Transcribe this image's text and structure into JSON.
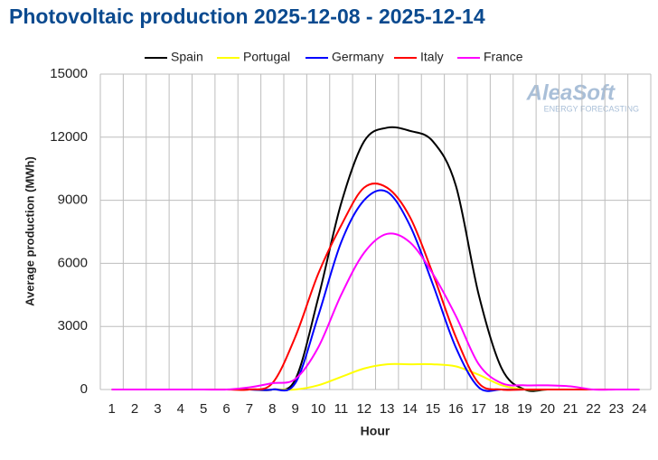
{
  "chart_data": {
    "type": "line",
    "title": "Photovoltaic production 2025-12-08 - 2025-12-14",
    "x_label": "Hour",
    "y_label": "Average production (MWh)",
    "watermark": {
      "name": "AleaSoft",
      "tagline": "ENERGY FORECASTING"
    },
    "categories": [
      1,
      2,
      3,
      4,
      5,
      6,
      7,
      8,
      9,
      10,
      11,
      12,
      13,
      14,
      15,
      16,
      17,
      18,
      19,
      20,
      21,
      22,
      23,
      24
    ],
    "ylim": [
      0,
      15000
    ],
    "yticks": [
      0,
      3000,
      6000,
      9000,
      12000,
      15000
    ],
    "grid": true,
    "legend": "top",
    "series": [
      {
        "name": "Spain",
        "color": "#000000",
        "values": [
          0,
          0,
          0,
          0,
          0,
          0,
          0,
          0,
          470,
          4350,
          8850,
          11800,
          12450,
          12300,
          11800,
          9700,
          4500,
          1000,
          0,
          0,
          0,
          0,
          0,
          0
        ]
      },
      {
        "name": "Portugal",
        "color": "#ffff00",
        "values": [
          0,
          0,
          0,
          0,
          0,
          0,
          0,
          0,
          0,
          200,
          600,
          1000,
          1200,
          1200,
          1200,
          1100,
          700,
          200,
          0,
          0,
          0,
          0,
          0,
          0
        ]
      },
      {
        "name": "Germany",
        "color": "#0000ff",
        "values": [
          0,
          0,
          0,
          0,
          0,
          0,
          0,
          0,
          300,
          3500,
          7000,
          9000,
          9400,
          7800,
          5000,
          2000,
          100,
          0,
          0,
          0,
          0,
          0,
          0,
          0
        ]
      },
      {
        "name": "Italy",
        "color": "#ff0000",
        "values": [
          0,
          0,
          0,
          0,
          0,
          0,
          0,
          300,
          2500,
          5500,
          7800,
          9600,
          9600,
          8200,
          5500,
          2500,
          300,
          0,
          0,
          0,
          0,
          0,
          0,
          0
        ]
      },
      {
        "name": "France",
        "color": "#ff00ff",
        "values": [
          0,
          0,
          0,
          0,
          0,
          0,
          100,
          300,
          500,
          2000,
          4500,
          6500,
          7400,
          7000,
          5500,
          3500,
          1200,
          300,
          200,
          200,
          150,
          0,
          0,
          0
        ]
      }
    ]
  }
}
